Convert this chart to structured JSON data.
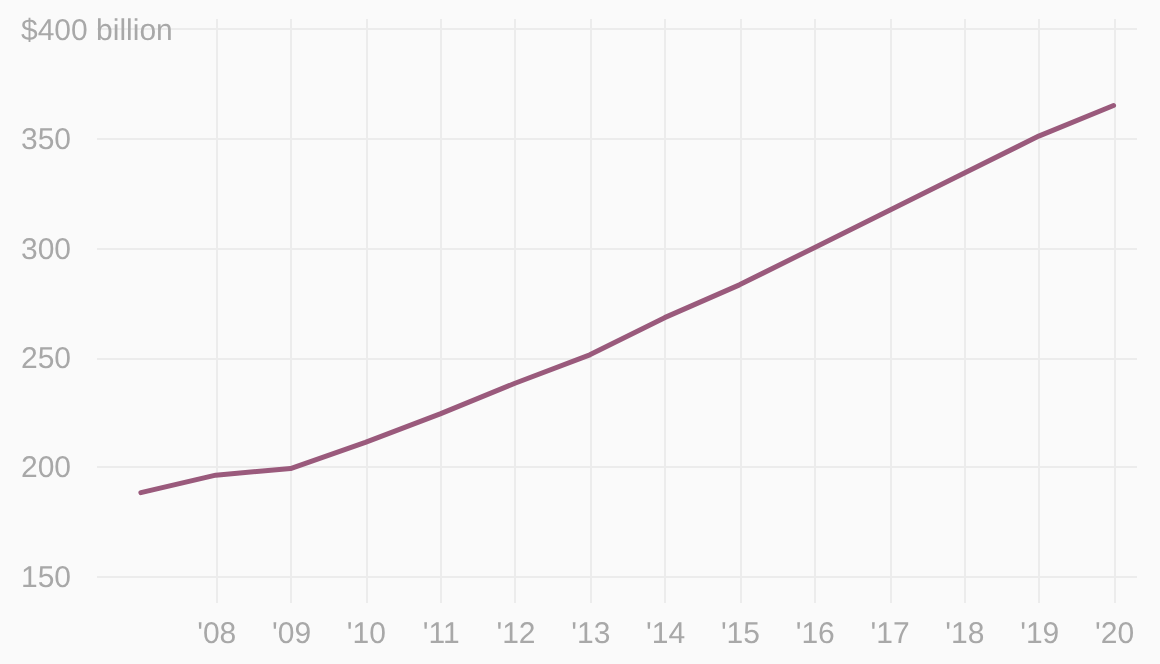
{
  "chart_data": {
    "type": "line",
    "x": [
      2007,
      2008,
      2009,
      2010,
      2011,
      2012,
      2013,
      2014,
      2015,
      2016,
      2017,
      2018,
      2019,
      2020
    ],
    "series": [
      {
        "color": "#9a5a7c",
        "values": [
          188,
          196,
          199,
          211,
          224,
          238,
          251,
          268,
          283,
          300,
          317,
          334,
          351,
          365
        ]
      }
    ],
    "xlim": [
      2006.4,
      2020.3
    ],
    "xticks": [
      {
        "value": 2008,
        "label": "'08"
      },
      {
        "value": 2009,
        "label": "'09"
      },
      {
        "value": 2010,
        "label": "'10"
      },
      {
        "value": 2011,
        "label": "'11"
      },
      {
        "value": 2012,
        "label": "'12"
      },
      {
        "value": 2013,
        "label": "'13"
      },
      {
        "value": 2014,
        "label": "'14"
      },
      {
        "value": 2015,
        "label": "'15"
      },
      {
        "value": 2016,
        "label": "'16"
      },
      {
        "value": 2017,
        "label": "'17"
      },
      {
        "value": 2018,
        "label": "'18"
      },
      {
        "value": 2019,
        "label": "'19"
      },
      {
        "value": 2020,
        "label": "'20"
      }
    ],
    "ylim": [
      138,
      405
    ],
    "yticks": [
      150,
      200,
      250,
      300,
      350,
      {
        "value": 400,
        "label": "$400 billion"
      }
    ],
    "grid": true,
    "marker": "none",
    "line_style": "solid"
  }
}
